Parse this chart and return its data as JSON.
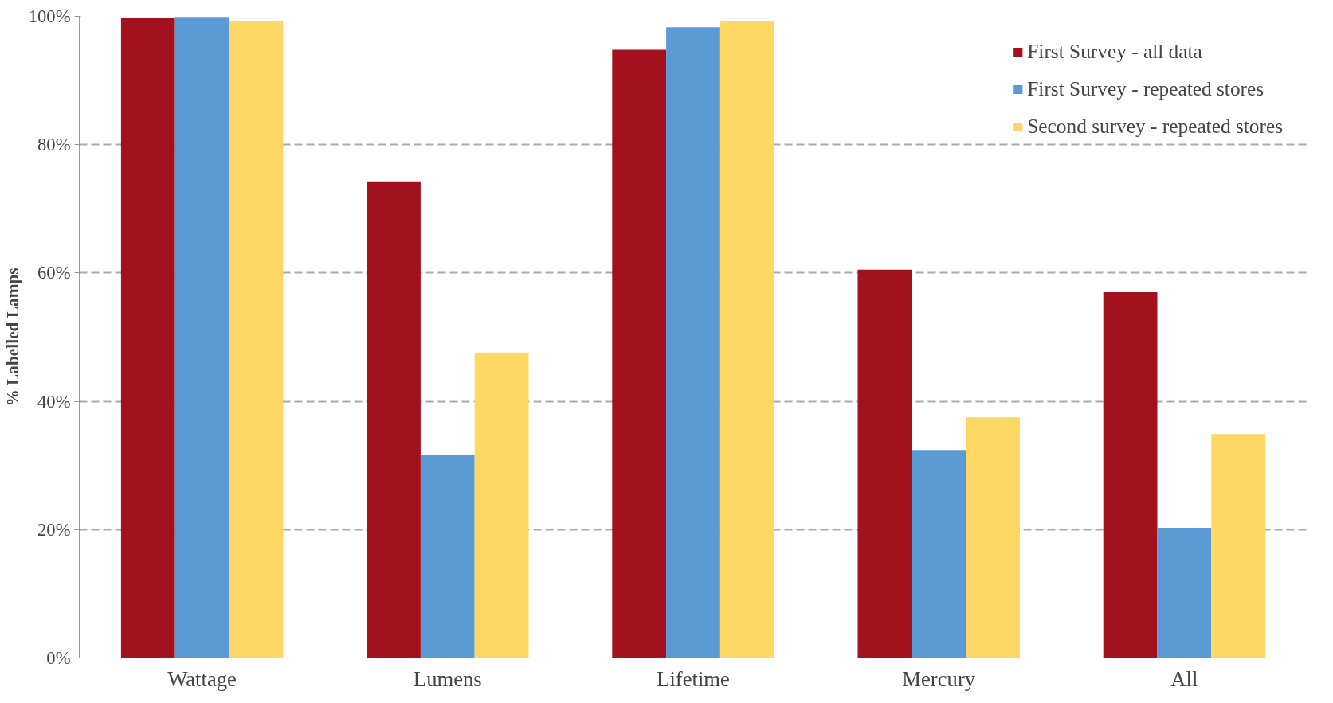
{
  "chart_data": {
    "type": "bar",
    "ylabel": "% Labelled Lamps",
    "categories": [
      "Wattage",
      "Lumens",
      "Lifetime",
      "Mercury",
      "All"
    ],
    "series": [
      {
        "name": "First Survey - all data",
        "color": "#a3111f",
        "values": [
          99.7,
          74.3,
          94.8,
          60.5,
          57.0
        ]
      },
      {
        "name": "First Survey - repeated stores",
        "color": "#5b9bd5",
        "values": [
          99.9,
          31.6,
          98.3,
          32.4,
          20.3
        ]
      },
      {
        "name": "Second survey - repeated stores",
        "color": "#fdd764",
        "values": [
          99.3,
          47.6,
          99.3,
          37.5,
          34.9
        ]
      }
    ],
    "ylim": [
      0,
      100
    ],
    "yticks": [
      {
        "value": 0,
        "label": "0%"
      },
      {
        "value": 20,
        "label": "20%"
      },
      {
        "value": 40,
        "label": "40%"
      },
      {
        "value": 60,
        "label": "60%"
      },
      {
        "value": 80,
        "label": "80%"
      },
      {
        "value": 100,
        "label": "100%"
      }
    ],
    "grid": "y",
    "legend": "top right"
  }
}
